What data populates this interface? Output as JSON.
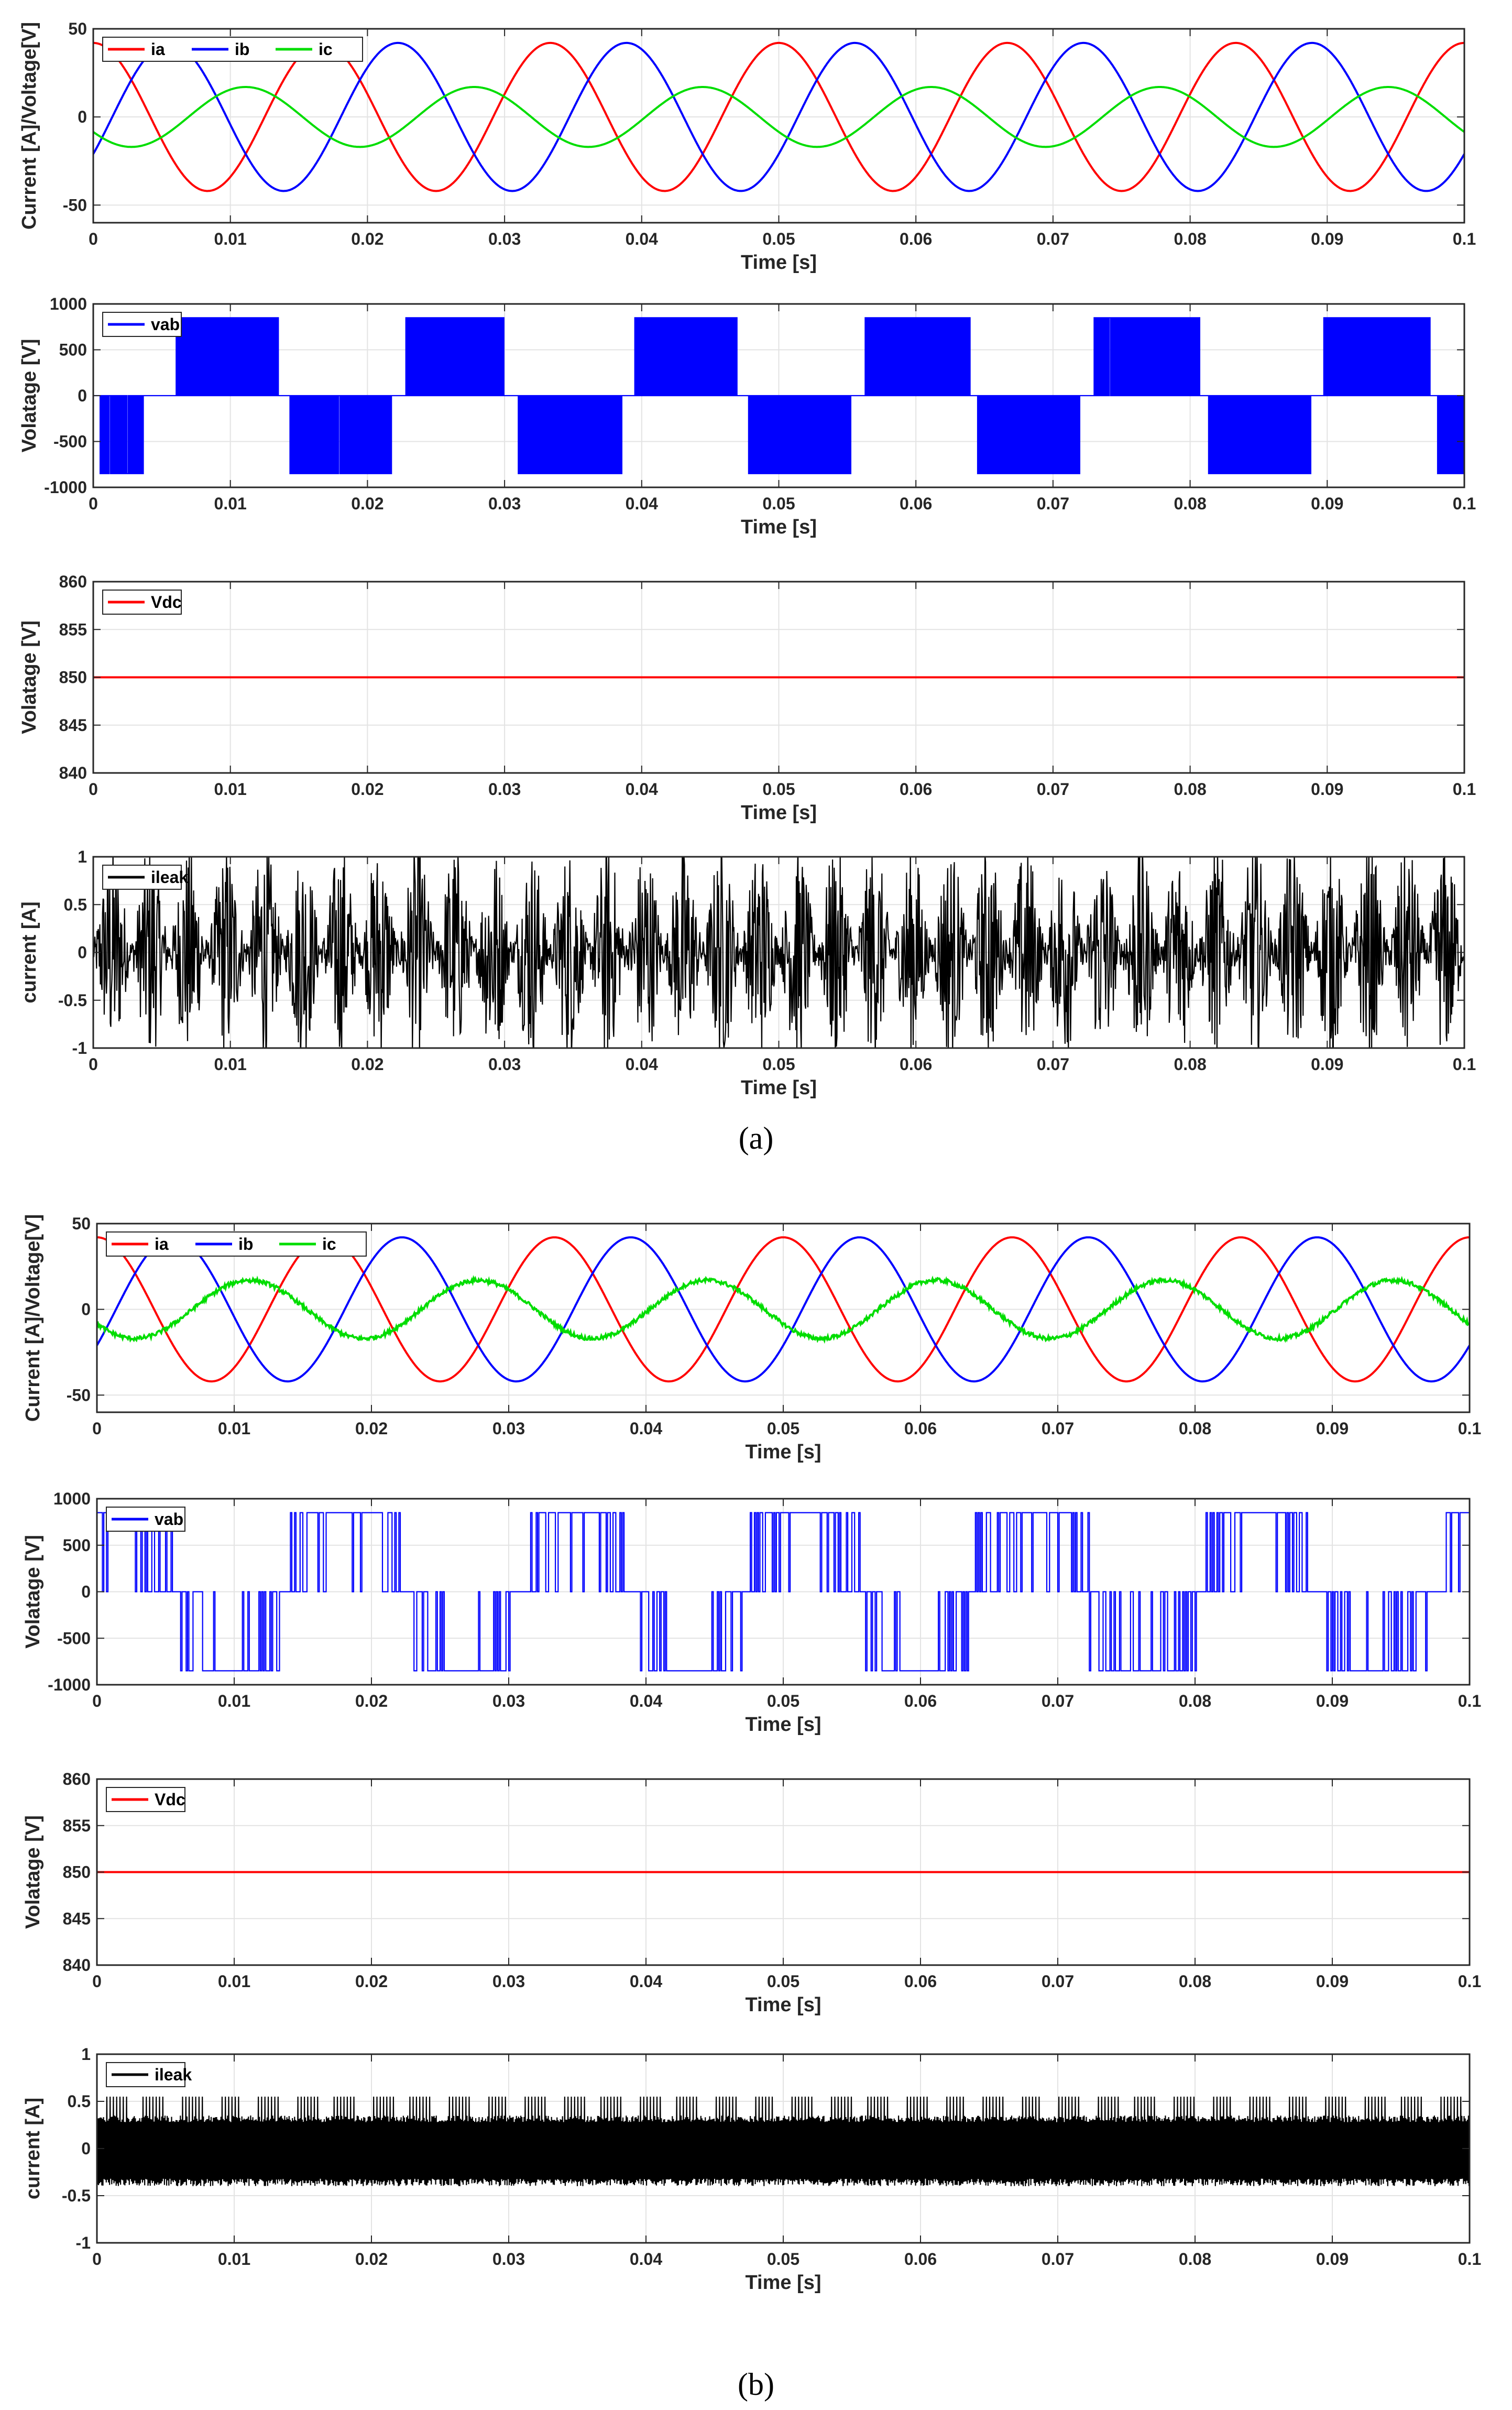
{
  "figure": {
    "captions": [
      "(a)",
      "(b)"
    ]
  },
  "chart_data": [
    {
      "group": "(a)",
      "type": "line",
      "xlabel": "Time [s]",
      "ylabel": "Current [A]/Voltage[V]",
      "xlim": [
        0,
        0.1
      ],
      "ylim": [
        -60,
        50
      ],
      "xticks": [
        0,
        0.01,
        0.02,
        0.03,
        0.04,
        0.05,
        0.06,
        0.07,
        0.08,
        0.09,
        0.1
      ],
      "xticklabels": [
        "0",
        "0.01",
        "0.02",
        "0.03",
        "0.04",
        "0.05",
        "0.06",
        "0.07",
        "0.08",
        "0.09",
        "0.1"
      ],
      "yticks": [
        -50,
        0,
        50
      ],
      "yticklabels": [
        "-50",
        "0",
        "50"
      ],
      "grid": true,
      "legend_position": "top-left",
      "legend_orientation": "horizontal",
      "series": [
        {
          "name": "ia",
          "color": "#ff0000",
          "waveform": "sine",
          "amplitude": 42,
          "frequency_hz": 60,
          "phase_deg": 90,
          "noise": 0
        },
        {
          "name": "ib",
          "color": "#0000ff",
          "waveform": "sine",
          "amplitude": 42,
          "frequency_hz": 60,
          "phase_deg": -30,
          "noise": 0
        },
        {
          "name": "ic",
          "color": "#00dd00",
          "waveform": "sine",
          "amplitude": 17,
          "frequency_hz": 60,
          "phase_deg": 210,
          "noise": 0
        }
      ]
    },
    {
      "group": "(a)",
      "type": "line",
      "xlabel": "Time [s]",
      "ylabel": "Volatage [V]",
      "xlim": [
        0,
        0.1
      ],
      "ylim": [
        -1000,
        1000
      ],
      "xticks": [
        0,
        0.01,
        0.02,
        0.03,
        0.04,
        0.05,
        0.06,
        0.07,
        0.08,
        0.09,
        0.1
      ],
      "xticklabels": [
        "0",
        "0.01",
        "0.02",
        "0.03",
        "0.04",
        "0.05",
        "0.06",
        "0.07",
        "0.08",
        "0.09",
        "0.1"
      ],
      "yticks": [
        -1000,
        -500,
        0,
        500,
        1000
      ],
      "yticklabels": [
        "-1000",
        "-500",
        "0",
        "500",
        "1000"
      ],
      "grid": true,
      "legend_position": "top-left",
      "series": [
        {
          "name": "vab",
          "color": "#0000ff",
          "waveform": "pwm-blocks",
          "level": 850,
          "frequency_hz": 60,
          "switching": "dense",
          "positive_blocks_s": [
            [
              0.006,
              0.0135
            ],
            [
              0.0228,
              0.03
            ],
            [
              0.0395,
              0.047
            ],
            [
              0.0563,
              0.064
            ],
            [
              0.073,
              0.0807
            ],
            [
              0.0897,
              0.0975
            ]
          ],
          "negative_blocks_s": [
            [
              0.0005,
              0.0037
            ],
            [
              0.0143,
              0.0218
            ],
            [
              0.031,
              0.0386
            ],
            [
              0.0478,
              0.0553
            ],
            [
              0.0645,
              0.072
            ],
            [
              0.0813,
              0.0888
            ],
            [
              0.098,
              0.1
            ]
          ]
        }
      ]
    },
    {
      "group": "(a)",
      "type": "line",
      "xlabel": "Time [s]",
      "ylabel": "Volatage [V]",
      "xlim": [
        0,
        0.1
      ],
      "ylim": [
        840,
        860
      ],
      "xticks": [
        0,
        0.01,
        0.02,
        0.03,
        0.04,
        0.05,
        0.06,
        0.07,
        0.08,
        0.09,
        0.1
      ],
      "xticklabels": [
        "0",
        "0.01",
        "0.02",
        "0.03",
        "0.04",
        "0.05",
        "0.06",
        "0.07",
        "0.08",
        "0.09",
        "0.1"
      ],
      "yticks": [
        840,
        845,
        850,
        855,
        860
      ],
      "yticklabels": [
        "840",
        "845",
        "850",
        "855",
        "860"
      ],
      "grid": true,
      "legend_position": "top-left",
      "series": [
        {
          "name": "Vdc",
          "color": "#ff0000",
          "waveform": "constant",
          "value": 850
        }
      ]
    },
    {
      "group": "(a)",
      "type": "line",
      "xlabel": "Time [s]",
      "ylabel": "current [A]",
      "xlim": [
        0,
        0.1
      ],
      "ylim": [
        -1,
        1
      ],
      "xticks": [
        0,
        0.01,
        0.02,
        0.03,
        0.04,
        0.05,
        0.06,
        0.07,
        0.08,
        0.09,
        0.1
      ],
      "xticklabels": [
        "0",
        "0.01",
        "0.02",
        "0.03",
        "0.04",
        "0.05",
        "0.06",
        "0.07",
        "0.08",
        "0.09",
        "0.1"
      ],
      "yticks": [
        -1,
        -0.5,
        0,
        0.5,
        1
      ],
      "yticklabels": [
        "-1",
        "-0.5",
        "0",
        "0.5",
        "1"
      ],
      "grid": true,
      "legend_position": "top-left",
      "series": [
        {
          "name": "ileak",
          "color": "#000000",
          "waveform": "leakage-bursts",
          "envelope_max": 1.0,
          "envelope_min": 0.1,
          "bursts_per_cycle": 6,
          "frequency_hz": 60
        }
      ]
    },
    {
      "group": "(b)",
      "type": "line",
      "xlabel": "Time [s]",
      "ylabel": "Current [A]/Voltage[V]",
      "xlim": [
        0,
        0.1
      ],
      "ylim": [
        -60,
        50
      ],
      "xticks": [
        0,
        0.01,
        0.02,
        0.03,
        0.04,
        0.05,
        0.06,
        0.07,
        0.08,
        0.09,
        0.1
      ],
      "xticklabels": [
        "0",
        "0.01",
        "0.02",
        "0.03",
        "0.04",
        "0.05",
        "0.06",
        "0.07",
        "0.08",
        "0.09",
        "0.1"
      ],
      "yticks": [
        -50,
        0,
        50
      ],
      "yticklabels": [
        "-50",
        "0",
        "50"
      ],
      "grid": true,
      "legend_position": "top-left",
      "legend_orientation": "horizontal",
      "series": [
        {
          "name": "ia",
          "color": "#ff0000",
          "waveform": "sine",
          "amplitude": 42,
          "frequency_hz": 60,
          "phase_deg": 90,
          "noise": 0
        },
        {
          "name": "ib",
          "color": "#0000ff",
          "waveform": "sine",
          "amplitude": 42,
          "frequency_hz": 60,
          "phase_deg": -30,
          "noise": 0
        },
        {
          "name": "ic",
          "color": "#00dd00",
          "waveform": "sine",
          "amplitude": 17,
          "frequency_hz": 60,
          "phase_deg": 210,
          "noise": 1.2
        }
      ]
    },
    {
      "group": "(b)",
      "type": "line",
      "xlabel": "Time [s]",
      "ylabel": "Volatage [V]",
      "xlim": [
        0,
        0.1
      ],
      "ylim": [
        -1000,
        1000
      ],
      "xticks": [
        0,
        0.01,
        0.02,
        0.03,
        0.04,
        0.05,
        0.06,
        0.07,
        0.08,
        0.09,
        0.1
      ],
      "xticklabels": [
        "0",
        "0.01",
        "0.02",
        "0.03",
        "0.04",
        "0.05",
        "0.06",
        "0.07",
        "0.08",
        "0.09",
        "0.1"
      ],
      "yticks": [
        -1000,
        -500,
        0,
        500,
        1000
      ],
      "yticklabels": [
        "-1000",
        "-500",
        "0",
        "500",
        "1000"
      ],
      "grid": true,
      "legend_position": "top-left",
      "series": [
        {
          "name": "vab",
          "color": "#0000ff",
          "waveform": "pwm-sine",
          "level": 850,
          "frequency_hz": 60,
          "phase_deg": 60,
          "switching": "sparse"
        }
      ]
    },
    {
      "group": "(b)",
      "type": "line",
      "xlabel": "Time [s]",
      "ylabel": "Volatage [V]",
      "xlim": [
        0,
        0.1
      ],
      "ylim": [
        840,
        860
      ],
      "xticks": [
        0,
        0.01,
        0.02,
        0.03,
        0.04,
        0.05,
        0.06,
        0.07,
        0.08,
        0.09,
        0.1
      ],
      "xticklabels": [
        "0",
        "0.01",
        "0.02",
        "0.03",
        "0.04",
        "0.05",
        "0.06",
        "0.07",
        "0.08",
        "0.09",
        "0.1"
      ],
      "yticks": [
        840,
        845,
        850,
        855,
        860
      ],
      "yticklabels": [
        "840",
        "845",
        "850",
        "855",
        "860"
      ],
      "grid": true,
      "legend_position": "top-left",
      "series": [
        {
          "name": "Vdc",
          "color": "#ff0000",
          "waveform": "constant",
          "value": 850
        }
      ]
    },
    {
      "group": "(b)",
      "type": "line",
      "xlabel": "Time [s]",
      "ylabel": "current [A]",
      "xlim": [
        0,
        0.1
      ],
      "ylim": [
        -1,
        1
      ],
      "xticks": [
        0,
        0.01,
        0.02,
        0.03,
        0.04,
        0.05,
        0.06,
        0.07,
        0.08,
        0.09,
        0.1
      ],
      "xticklabels": [
        "0",
        "0.01",
        "0.02",
        "0.03",
        "0.04",
        "0.05",
        "0.06",
        "0.07",
        "0.08",
        "0.09",
        "0.1"
      ],
      "yticks": [
        -1,
        -0.5,
        0,
        0.5,
        1
      ],
      "yticklabels": [
        "-1",
        "-0.5",
        "0",
        "0.5",
        "1"
      ],
      "grid": true,
      "legend_position": "top-left",
      "series": [
        {
          "name": "ileak",
          "color": "#000000",
          "waveform": "leakage-band",
          "band_top": 0.35,
          "band_bottom": -0.4,
          "spike_max": 0.55,
          "frequency_hz": 60
        }
      ]
    }
  ]
}
